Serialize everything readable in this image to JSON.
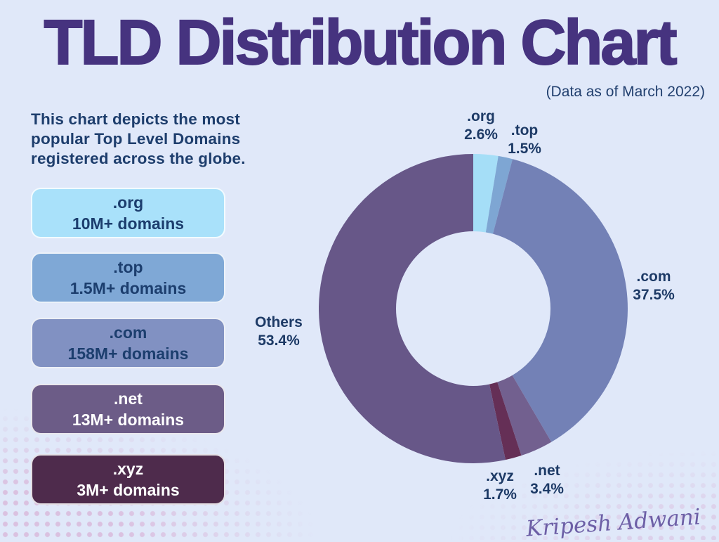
{
  "page": {
    "background": "#e0e8f9"
  },
  "header": {
    "title": "TLD Distribution Chart",
    "data_note": "(Data as of March 2022)"
  },
  "description": "This chart depicts the most popular Top Level Domains registered across the globe.",
  "legend": {
    "items": [
      {
        "tld": ".org",
        "domains": "10M+ domains",
        "bg": "#a9e1fa",
        "text_color": "#1c3e6e"
      },
      {
        "tld": ".top",
        "domains": "1.5M+ domains",
        "bg": "#7fa8d6",
        "text_color": "#1c3e6e"
      },
      {
        "tld": ".com",
        "domains": "158M+ domains",
        "bg": "#8191c2",
        "text_color": "#1c3e6e"
      },
      {
        "tld": ".net",
        "domains": "13M+ domains",
        "bg": "#6c5c87",
        "text_color": "#ffffff"
      },
      {
        "tld": ".xyz",
        "domains": "3M+ domains",
        "bg": "#4e2b4c",
        "text_color": "#ffffff"
      }
    ]
  },
  "chart_data": {
    "type": "pie",
    "subtype": "donut",
    "title": "TLD Distribution Chart",
    "subtitle": "(Data as of March 2022)",
    "start_angle_deg": 0,
    "direction": "clockwise",
    "outer_radius_px": 220,
    "inner_radius_px": 110,
    "slices": [
      {
        "label": ".org",
        "value_pct": 2.6,
        "pct_label": "2.6%",
        "color": "#a5def7",
        "domains": "10M+ domains"
      },
      {
        "label": ".top",
        "value_pct": 1.5,
        "pct_label": "1.5%",
        "color": "#7ea6d3",
        "domains": "1.5M+ domains"
      },
      {
        "label": ".com",
        "value_pct": 37.5,
        "pct_label": "37.5%",
        "color": "#7381b6",
        "domains": "158M+ domains"
      },
      {
        "label": ".net",
        "value_pct": 3.4,
        "pct_label": "3.4%",
        "color": "#72608f",
        "domains": "13M+ domains"
      },
      {
        "label": ".xyz",
        "value_pct": 1.7,
        "pct_label": "1.7%",
        "color": "#652f56",
        "domains": "3M+ domains"
      },
      {
        "label": "Others",
        "value_pct": 53.4,
        "pct_label": "53.4%",
        "color": "#675788",
        "domains": ""
      }
    ]
  },
  "signature": "Kripesh Adwani"
}
